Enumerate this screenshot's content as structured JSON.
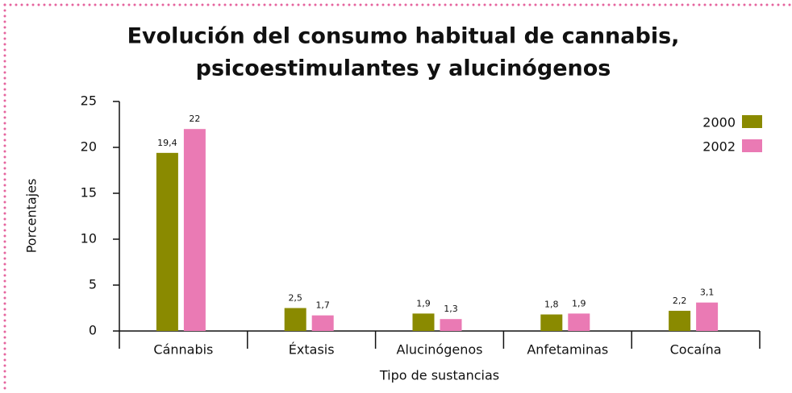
{
  "chart_data": {
    "type": "bar",
    "title": [
      "Evolución del consumo habitual de cannabis,",
      "psicoestimulantes y alucinógenos"
    ],
    "x_label": "Tipo de sustancias",
    "y_label": "Porcentajes",
    "categories": [
      "Cánnabis",
      "Éxtasis",
      "Alucinógenos",
      "Anfetaminas",
      "Cocaína"
    ],
    "series": [
      {
        "name": "2000",
        "color": "#8a8a00",
        "values": [
          19.4,
          2.5,
          1.9,
          1.8,
          2.2
        ],
        "value_labels": [
          "19,4",
          "2,5",
          "1,9",
          "1,8",
          "2,2"
        ]
      },
      {
        "name": "2002",
        "color": "#ea7ab4",
        "values": [
          22,
          1.7,
          1.3,
          1.9,
          3.1
        ],
        "value_labels": [
          "22",
          "1,7",
          "1,3",
          "1,9",
          "3,1"
        ]
      }
    ],
    "ylim": [
      0,
      25
    ],
    "yticks": [
      0,
      5,
      10,
      15,
      20,
      25
    ],
    "legend": "top-right"
  }
}
